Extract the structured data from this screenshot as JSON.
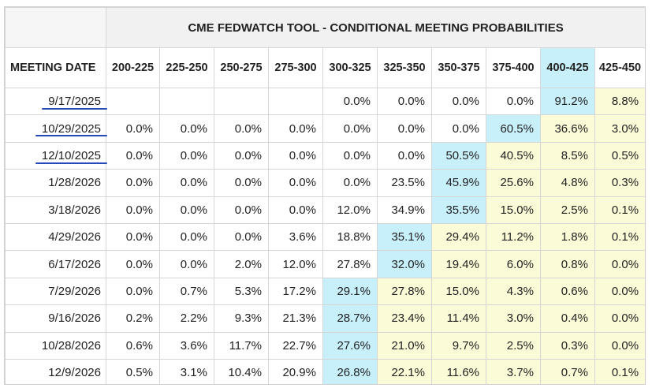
{
  "table": {
    "title": "CME FEDWATCH TOOL - CONDITIONAL MEETING PROBABILITIES",
    "date_header": "MEETING DATE",
    "columns": [
      "200-225",
      "225-250",
      "250-275",
      "275-300",
      "300-325",
      "325-350",
      "350-375",
      "375-400",
      "400-425",
      "425-450"
    ],
    "highlighted_column_header": 8,
    "colors": {
      "highlight_max": "#c8f0fb",
      "highlight_above": "#fcfbd8",
      "header_band": "#f1f1f1",
      "underline_ink": "#2549b8"
    },
    "rows": [
      {
        "date": "9/17/2025",
        "underlined": true,
        "values": [
          "",
          "",
          "",
          "",
          "0.0%",
          "0.0%",
          "0.0%",
          "0.0%",
          "91.2%",
          "8.8%"
        ],
        "max_index": 8
      },
      {
        "date": "10/29/2025",
        "underlined": true,
        "values": [
          "0.0%",
          "0.0%",
          "0.0%",
          "0.0%",
          "0.0%",
          "0.0%",
          "0.0%",
          "60.5%",
          "36.6%",
          "3.0%"
        ],
        "max_index": 7
      },
      {
        "date": "12/10/2025",
        "underlined": true,
        "values": [
          "0.0%",
          "0.0%",
          "0.0%",
          "0.0%",
          "0.0%",
          "0.0%",
          "50.5%",
          "40.5%",
          "8.5%",
          "0.5%"
        ],
        "max_index": 6
      },
      {
        "date": "1/28/2026",
        "underlined": false,
        "values": [
          "0.0%",
          "0.0%",
          "0.0%",
          "0.0%",
          "0.0%",
          "23.5%",
          "45.9%",
          "25.6%",
          "4.8%",
          "0.3%"
        ],
        "max_index": 6
      },
      {
        "date": "3/18/2026",
        "underlined": false,
        "values": [
          "0.0%",
          "0.0%",
          "0.0%",
          "0.0%",
          "12.0%",
          "34.9%",
          "35.5%",
          "15.0%",
          "2.5%",
          "0.1%"
        ],
        "max_index": 6
      },
      {
        "date": "4/29/2026",
        "underlined": false,
        "values": [
          "0.0%",
          "0.0%",
          "0.0%",
          "3.6%",
          "18.8%",
          "35.1%",
          "29.4%",
          "11.2%",
          "1.8%",
          "0.1%"
        ],
        "max_index": 5
      },
      {
        "date": "6/17/2026",
        "underlined": false,
        "values": [
          "0.0%",
          "0.0%",
          "2.0%",
          "12.0%",
          "27.8%",
          "32.0%",
          "19.4%",
          "6.0%",
          "0.8%",
          "0.0%"
        ],
        "max_index": 5
      },
      {
        "date": "7/29/2026",
        "underlined": false,
        "values": [
          "0.0%",
          "0.7%",
          "5.3%",
          "17.2%",
          "29.1%",
          "27.8%",
          "15.0%",
          "4.3%",
          "0.6%",
          "0.0%"
        ],
        "max_index": 4
      },
      {
        "date": "9/16/2026",
        "underlined": false,
        "values": [
          "0.2%",
          "2.2%",
          "9.3%",
          "21.3%",
          "28.7%",
          "23.4%",
          "11.4%",
          "3.0%",
          "0.4%",
          "0.0%"
        ],
        "max_index": 4
      },
      {
        "date": "10/28/2026",
        "underlined": false,
        "values": [
          "0.6%",
          "3.6%",
          "11.7%",
          "22.7%",
          "27.6%",
          "21.0%",
          "9.7%",
          "2.5%",
          "0.3%",
          "0.0%"
        ],
        "max_index": 4
      },
      {
        "date": "12/9/2026",
        "underlined": false,
        "values": [
          "0.5%",
          "3.1%",
          "10.4%",
          "20.9%",
          "26.8%",
          "22.1%",
          "11.6%",
          "3.7%",
          "0.7%",
          "0.1%"
        ],
        "max_index": 4
      }
    ]
  }
}
